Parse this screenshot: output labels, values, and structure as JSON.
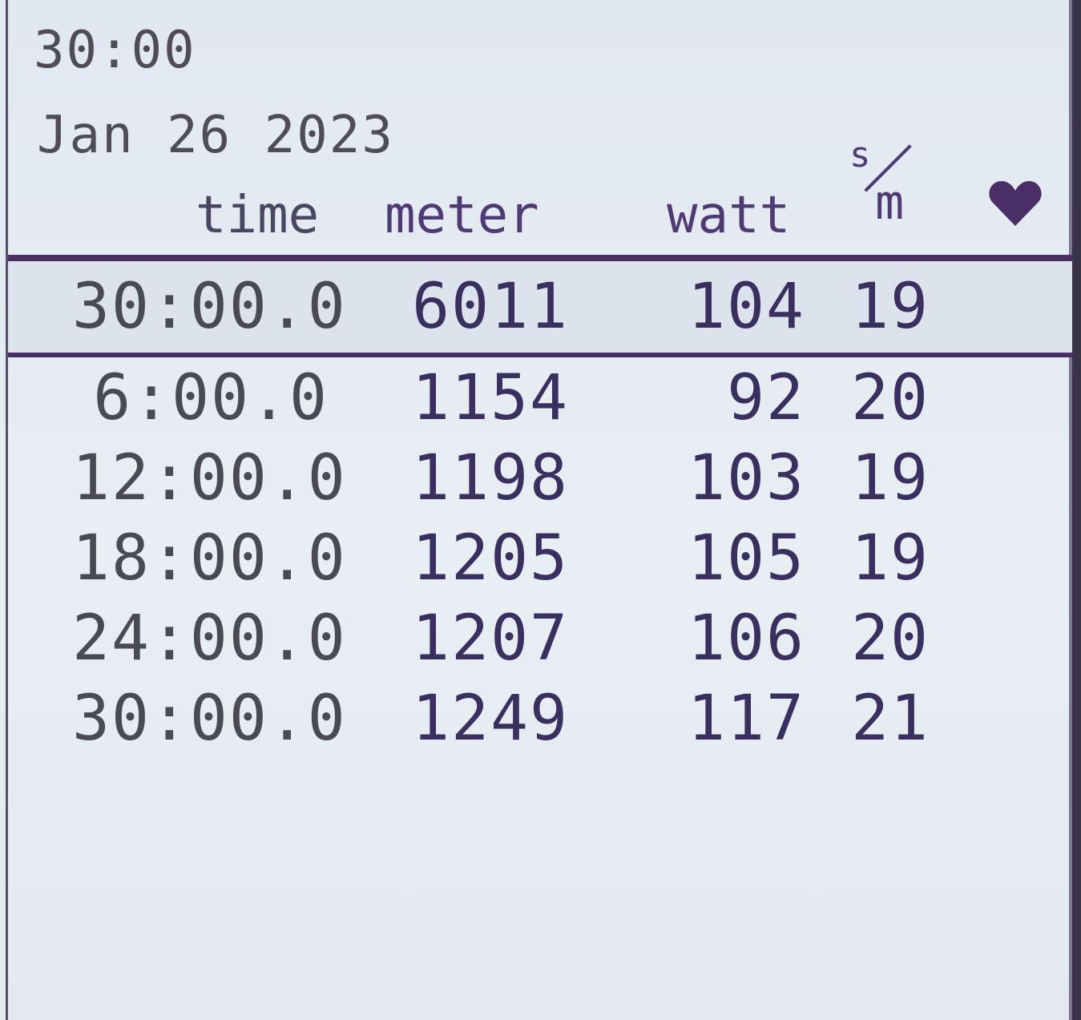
{
  "header": {
    "duration": "30:00",
    "date": "Jan  26 2023"
  },
  "columns": {
    "time": "time",
    "meter": "meter",
    "watt": "watt",
    "spm_numerator": "s",
    "spm_denominator": "m",
    "heart_icon": "heart-icon"
  },
  "summary": {
    "time": "30:00.0",
    "meter": "6011",
    "watt": "104",
    "spm": "19"
  },
  "splits": [
    {
      "time": "6:00.0",
      "meter": "1154",
      "watt": "92",
      "spm": "20"
    },
    {
      "time": "12:00.0",
      "meter": "1198",
      "watt": "103",
      "spm": "19"
    },
    {
      "time": "18:00.0",
      "meter": "1205",
      "watt": "105",
      "spm": "19"
    },
    {
      "time": "24:00.0",
      "meter": "1207",
      "watt": "106",
      "spm": "20"
    },
    {
      "time": "30:00.0",
      "meter": "1249",
      "watt": "117",
      "spm": "21"
    }
  ],
  "colors": {
    "accent": "#4a2e66",
    "text": "#3a3060",
    "background": "#e7ecf3"
  }
}
